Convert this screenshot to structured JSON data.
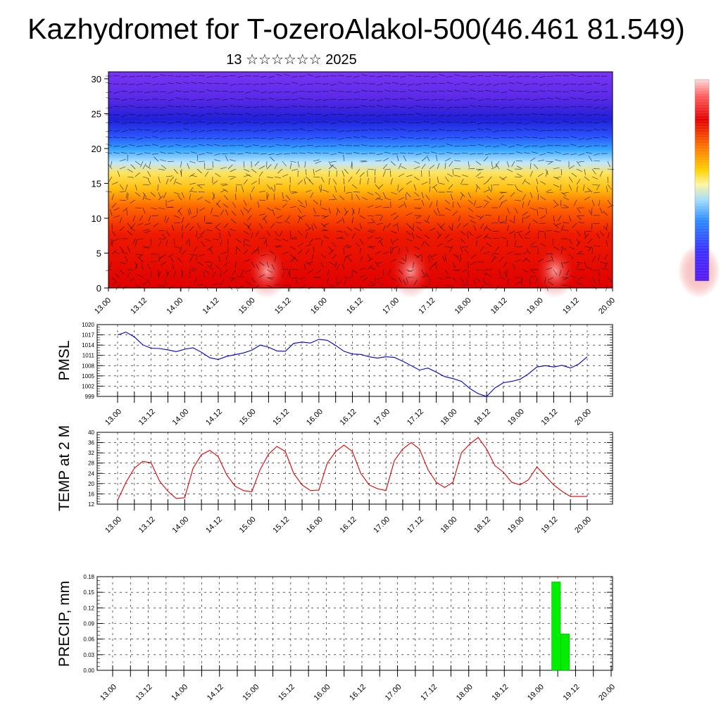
{
  "title": "Kazhydromet for T-ozeroAlakol-500(46.461 81.549)",
  "subtitle": "13 ☆☆☆☆☆☆ 2025",
  "x_tick_labels": [
    "13.00",
    "13.12",
    "14.00",
    "14.12",
    "15.00",
    "15.12",
    "16.00",
    "16.12",
    "17.00",
    "17.12",
    "18.00",
    "18.12",
    "19.00",
    "19.12",
    "20.00"
  ],
  "colors": {
    "pmsl_line": "#0000cc",
    "temp_line": "#dd0000",
    "precip_bar": "#00ee00",
    "axis": "#000000"
  },
  "chart_data": [
    {
      "type": "heatmap",
      "name_hint": "vertical cross-section with wind vectors",
      "y_ticks": [
        0,
        5,
        10,
        15,
        20,
        25,
        30
      ],
      "ylim": [
        0,
        31
      ],
      "x_categories": [
        "13.00",
        "13.12",
        "14.00",
        "14.12",
        "15.00",
        "15.12",
        "16.00",
        "16.12",
        "17.00",
        "17.12",
        "18.00",
        "18.12",
        "19.00",
        "19.12",
        "20.00"
      ],
      "colorbar": "rainbow (purple to blue to yellow to red to white)",
      "bands": [
        {
          "level_from": 0,
          "level_to": 12,
          "color": "#e60000"
        },
        {
          "level_from": 12,
          "level_to": 17,
          "color": "#ffae00"
        },
        {
          "level_from": 17,
          "level_to": 21,
          "color": "#3eaaff"
        },
        {
          "level_from": 21,
          "level_to": 31,
          "color": "#5a1fe8"
        }
      ]
    },
    {
      "type": "line",
      "ylabel": "PMSL",
      "ylim": [
        999,
        1020
      ],
      "y_ticks": [
        999,
        1002,
        1005,
        1008,
        1011,
        1014,
        1017,
        1020
      ],
      "x_ticks": [
        "13.00",
        "13.12",
        "14.00",
        "14.12",
        "15.00",
        "15.12",
        "16.00",
        "16.12",
        "17.00",
        "17.12",
        "18.00",
        "18.12",
        "19.00",
        "19.12",
        "20.00"
      ],
      "x": [
        0,
        0.25,
        0.5,
        0.75,
        1,
        1.25,
        1.5,
        1.75,
        2,
        2.25,
        2.5,
        2.75,
        3,
        3.25,
        3.5,
        3.75,
        4,
        4.25,
        4.5,
        4.75,
        5,
        5.25,
        5.5,
        5.75,
        6,
        6.25,
        6.5,
        6.75,
        7,
        7.25,
        7.5,
        7.75,
        8,
        8.25,
        8.5,
        8.75,
        9,
        9.25,
        9.5,
        9.75,
        10,
        10.25,
        10.5,
        10.75,
        11,
        11.25,
        11.5,
        11.75,
        12,
        12.25,
        12.5,
        12.75,
        13,
        13.25,
        13.5,
        13.75,
        14
      ],
      "values": [
        1017,
        1017.8,
        1016.4,
        1014.1,
        1013.1,
        1013,
        1012.6,
        1012.1,
        1012.8,
        1013.2,
        1011.9,
        1010.3,
        1009.8,
        1010.7,
        1011.2,
        1011.7,
        1012.5,
        1014,
        1013.4,
        1012.3,
        1012.2,
        1014.5,
        1014.9,
        1014.6,
        1015.7,
        1015.4,
        1013.9,
        1012.2,
        1011.4,
        1011.3,
        1010.6,
        1010.2,
        1010.6,
        1010.4,
        1009.3,
        1008,
        1006.7,
        1007.3,
        1006.1,
        1004.8,
        1004.2,
        1003.4,
        1001.3,
        999.8,
        999,
        1001.5,
        1003,
        1003.4,
        1004,
        1005.6,
        1007.6,
        1008,
        1007.6,
        1008.1,
        1007.3,
        1008.5,
        1010.6
      ]
    },
    {
      "type": "line",
      "ylabel": "TEMP at 2 M",
      "ylim": [
        12,
        40
      ],
      "y_ticks": [
        12,
        16,
        20,
        24,
        28,
        32,
        36,
        40
      ],
      "x_ticks": [
        "13.00",
        "13.12",
        "14.00",
        "14.12",
        "15.00",
        "15.12",
        "16.00",
        "16.12",
        "17.00",
        "17.12",
        "18.00",
        "18.12",
        "19.00",
        "19.12",
        "20.00"
      ],
      "x": [
        0,
        0.25,
        0.5,
        0.75,
        1,
        1.25,
        1.5,
        1.75,
        2,
        2.25,
        2.5,
        2.75,
        3,
        3.25,
        3.5,
        3.75,
        4,
        4.25,
        4.5,
        4.75,
        5,
        5.25,
        5.5,
        5.75,
        6,
        6.25,
        6.5,
        6.75,
        7,
        7.25,
        7.5,
        7.75,
        8,
        8.25,
        8.5,
        8.75,
        9,
        9.25,
        9.5,
        9.75,
        10,
        10.25,
        10.5,
        10.75,
        11,
        11.25,
        11.5,
        11.75,
        12,
        12.25,
        12.5,
        12.75,
        13,
        13.25,
        13.5,
        13.75,
        14
      ],
      "values": [
        13.5,
        20.5,
        26,
        28.7,
        28.1,
        21,
        17,
        14.2,
        14.5,
        26,
        31.3,
        33,
        30.5,
        23.5,
        19,
        17.3,
        16.8,
        25.5,
        31.5,
        34.5,
        32.5,
        24,
        19.5,
        17.3,
        17.5,
        28,
        32.5,
        35,
        32.5,
        24,
        19.5,
        18,
        17.3,
        29,
        33.5,
        36,
        33.5,
        25.5,
        20.5,
        18.5,
        20.5,
        32,
        35.5,
        38,
        33.5,
        27,
        24.5,
        20.5,
        19.5,
        21.5,
        26.5,
        23,
        19.5,
        17,
        15,
        15,
        15
      ]
    },
    {
      "type": "bar",
      "ylabel": "PRECIP, mm",
      "ylim": [
        0,
        0.18
      ],
      "y_ticks": [
        "0.00",
        "0.03",
        "0.06",
        "0.09",
        "0.12",
        "0.15",
        "0.18"
      ],
      "x_ticks": [
        "13.00",
        "13.12",
        "14.00",
        "14.12",
        "15.00",
        "15.12",
        "16.00",
        "16.12",
        "17.00",
        "17.12",
        "18.00",
        "18.12",
        "19.00",
        "19.12",
        "20.00"
      ],
      "bars": [
        {
          "x_from": 12.33,
          "x_to": 12.58,
          "value": 0.17
        },
        {
          "x_from": 12.58,
          "x_to": 12.83,
          "value": 0.07
        }
      ]
    }
  ]
}
